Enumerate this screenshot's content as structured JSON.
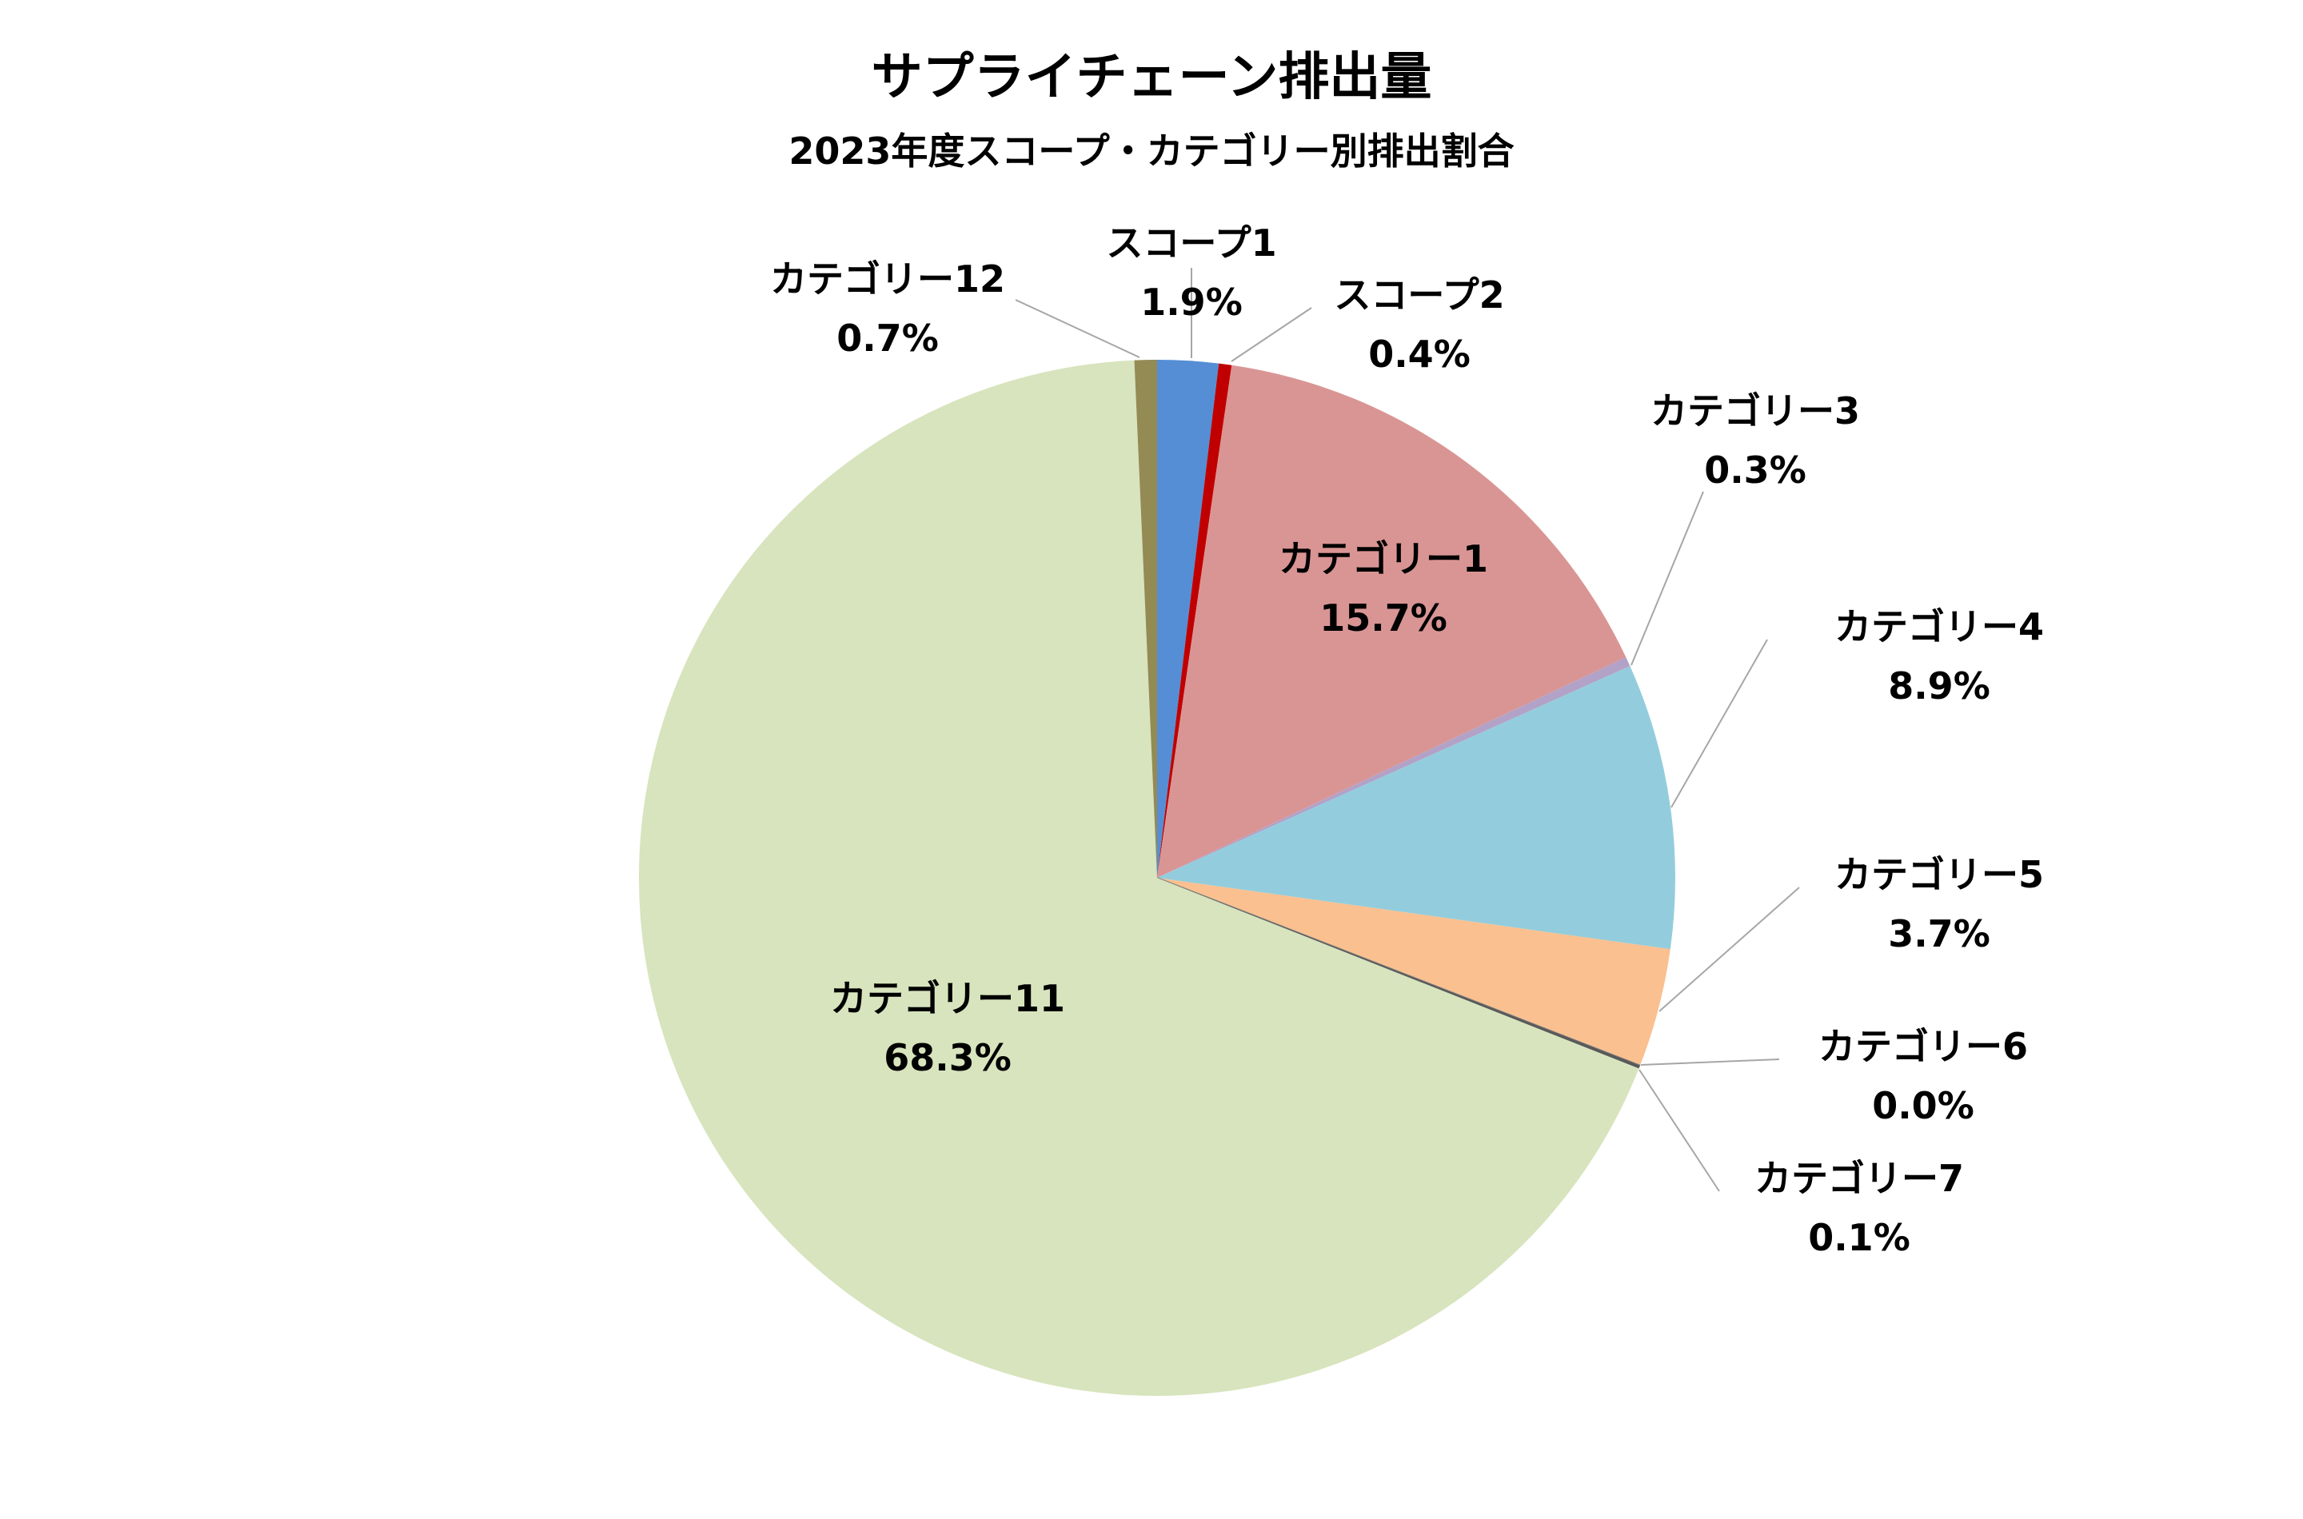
{
  "chart_data": {
    "type": "pie",
    "title": "サプライチェーン排出量",
    "subtitle": "2023年度スコープ・カテゴリー別排出割合",
    "legend": "none",
    "slices": [
      {
        "name": "スコープ1",
        "value": 1.9,
        "label": "1.9%",
        "color": "#558ed5"
      },
      {
        "name": "スコープ2",
        "value": 0.4,
        "label": "0.4%",
        "color": "#c00000"
      },
      {
        "name": "カテゴリー1",
        "value": 15.7,
        "label": "15.7%",
        "color": "#d99594"
      },
      {
        "name": "カテゴリー3",
        "value": 0.3,
        "label": "0.3%",
        "color": "#b3a2c7"
      },
      {
        "name": "カテゴリー4",
        "value": 8.9,
        "label": "8.9%",
        "color": "#93cddd"
      },
      {
        "name": "カテゴリー5",
        "value": 3.7,
        "label": "3.7%",
        "color": "#fac090"
      },
      {
        "name": "カテゴリー6",
        "value": 0.0,
        "label": "0.0%",
        "color": "#7f7f7f"
      },
      {
        "name": "カテゴリー7",
        "value": 0.1,
        "label": "0.1%",
        "color": "#595959"
      },
      {
        "name": "カテゴリー11",
        "value": 68.3,
        "label": "68.3%",
        "color": "#d7e4bd"
      },
      {
        "name": "カテゴリー12",
        "value": 0.7,
        "label": "0.7%",
        "color": "#948a54"
      }
    ]
  }
}
